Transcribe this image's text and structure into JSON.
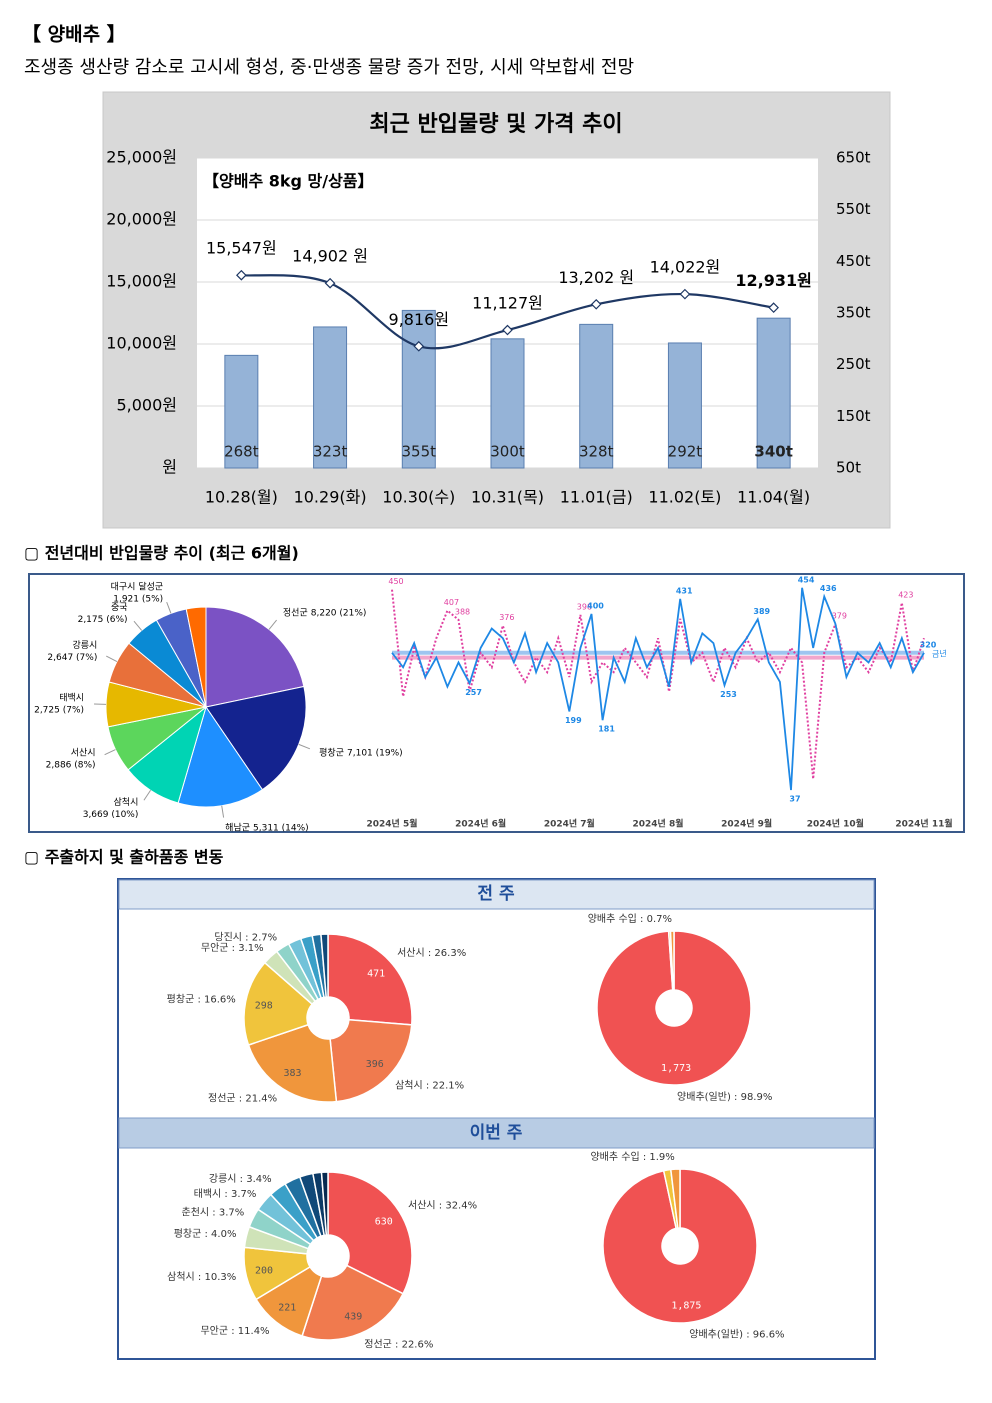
{
  "header": {
    "title": "【 양배추 】",
    "subtitle": "조생종 생산량 감소로 고시세 형성, 중·만생종 물량 증가 전망, 시세 약보합세 전망"
  },
  "sections": [
    "▢ 전년대비 반입물량 추이 (최근 6개월)",
    "▢ 주출하지 및 출하품종 변동"
  ],
  "panels": [
    "전 주",
    "이번 주"
  ],
  "chart_data": [
    {
      "type": "combo",
      "title": "최근 반입물량 및 가격 추이",
      "annotation": "【양배추 8kg 망/상품】",
      "categories": [
        "10.28(월)",
        "10.29(화)",
        "10.30(수)",
        "10.31(목)",
        "11.01(금)",
        "11.02(토)",
        "11.04(월)"
      ],
      "series": [
        {
          "type": "bar",
          "axis": "y2",
          "color": "#95b3d7",
          "values": [
            268,
            323,
            355,
            300,
            328,
            292,
            340
          ],
          "value_labels": [
            "268t",
            "323t",
            "355t",
            "300t",
            "328t",
            "292t",
            "340t"
          ]
        },
        {
          "type": "line",
          "color": "#1f3864",
          "values": [
            15547,
            14902,
            9816,
            11127,
            13202,
            14022,
            12931
          ],
          "value_labels": [
            "15,547원",
            "14,902 원",
            "9,816원",
            "11,127원",
            "13,202 원",
            "14,022원",
            "12,931원"
          ]
        }
      ],
      "ylim": [
        0,
        25000
      ],
      "yticks": [
        {
          "value": 0,
          "label": "원"
        },
        {
          "value": 5000,
          "label": "5,000원"
        },
        {
          "value": 10000,
          "label": "10,000원"
        },
        {
          "value": 15000,
          "label": "15,000원"
        },
        {
          "value": 20000,
          "label": "20,000원"
        },
        {
          "value": 25000,
          "label": "25,000원"
        }
      ],
      "y2lim": [
        50,
        650
      ],
      "y2ticks": [
        {
          "value": 50,
          "label": "50t"
        },
        {
          "value": 150,
          "label": "150t"
        },
        {
          "value": 250,
          "label": "250t"
        },
        {
          "value": 350,
          "label": "350t"
        },
        {
          "value": 450,
          "label": "450t"
        },
        {
          "value": 550,
          "label": "550t"
        },
        {
          "value": 650,
          "label": "650t"
        }
      ],
      "grid": true
    },
    {
      "type": "pie",
      "categories": [
        "정선군",
        "평창군",
        "해남군",
        "삼척시",
        "서산시",
        "태백시",
        "강릉시",
        "중국",
        "대구시 달성군",
        null
      ],
      "values": [
        8220,
        7101,
        5311,
        3669,
        2886,
        2725,
        2647,
        2175,
        1921,
        1200
      ],
      "value_labels": [
        "8,220 (21%)",
        "7,101 (19%)",
        "5,311 (14%)",
        "3,669 (10%)",
        "2,886 (8%)",
        "2,725 (7%)",
        "2,647 (7%)",
        "2,175 (6%)",
        "1,921 (5%)",
        null
      ],
      "colors": [
        "#7b52c4",
        "#14238f",
        "#1e8fff",
        "#00d4b4",
        "#5cd65c",
        "#e6b800",
        "#e8703a",
        "#0a8ad4",
        "#4a62c8",
        "#ff6a00"
      ]
    },
    {
      "type": "line",
      "categories": [
        "2024년 5월",
        null,
        null,
        null,
        null,
        null,
        null,
        null,
        "2024년 6월",
        null,
        null,
        null,
        null,
        null,
        null,
        null,
        "2024년 7월",
        null,
        null,
        null,
        null,
        null,
        null,
        null,
        "2024년 8월",
        null,
        null,
        null,
        null,
        null,
        null,
        null,
        "2024년 9월",
        null,
        null,
        null,
        null,
        null,
        null,
        null,
        "2024년 10월",
        null,
        null,
        null,
        null,
        null,
        null,
        null,
        "2024년 11월"
      ],
      "series": [
        {
          "name": "금년",
          "color": "#1e88e5",
          "values": [
            320,
            290,
            340,
            270,
            310,
            250,
            300,
            257,
            330,
            370,
            350,
            300,
            360,
            280,
            340,
            300,
            199,
            330,
            400,
            181,
            310,
            260,
            350,
            290,
            330,
            250,
            431,
            300,
            360,
            340,
            253,
            320,
            350,
            389,
            300,
            260,
            37,
            454,
            330,
            436,
            380,
            270,
            320,
            300,
            340,
            290,
            350,
            280,
            320
          ],
          "value_labels": [
            null,
            null,
            null,
            null,
            null,
            null,
            null,
            "257",
            null,
            null,
            null,
            null,
            null,
            null,
            null,
            null,
            "199",
            null,
            "400",
            "181",
            null,
            null,
            null,
            null,
            null,
            null,
            "431",
            null,
            null,
            null,
            "253",
            null,
            null,
            "389",
            null,
            null,
            "37",
            "454",
            null,
            "436",
            null,
            null,
            null,
            null,
            null,
            null,
            null,
            null,
            "320"
          ]
        },
        {
          "color": "#e040a0",
          "dotted": true,
          "values": [
            450,
            230,
            330,
            270,
            350,
            407,
            388,
            240,
            320,
            290,
            376,
            300,
            260,
            310,
            280,
            350,
            270,
            398,
            260,
            300,
            280,
            330,
            300,
            270,
            350,
            240,
            390,
            300,
            320,
            260,
            330,
            290,
            350,
            300,
            320,
            280,
            330,
            300,
            60,
            320,
            379,
            290,
            310,
            280,
            330,
            300,
            423,
            280,
            350
          ],
          "value_labels": [
            "450",
            null,
            null,
            null,
            null,
            "407",
            "388",
            null,
            null,
            null,
            "376",
            null,
            null,
            null,
            null,
            null,
            null,
            "398",
            null,
            null,
            null,
            null,
            null,
            null,
            null,
            null,
            null,
            null,
            null,
            null,
            null,
            null,
            null,
            null,
            null,
            null,
            null,
            null,
            null,
            null,
            "379",
            null,
            null,
            null,
            null,
            null,
            "423",
            null,
            null
          ]
        }
      ],
      "average_lines": [
        {
          "value": 320,
          "color": "#9ec5f0"
        },
        {
          "value": 310,
          "color": "#f2a6cc"
        }
      ],
      "ylim": [
        0,
        470
      ]
    },
    {
      "type": "donut",
      "values": [
        471,
        396,
        383,
        298,
        56,
        48,
        45,
        40,
        30,
        24
      ],
      "labels": [
        "서산시 : 26.3%",
        "삼척시 : 22.1%",
        "정선군 : 21.4%",
        "평창군 : 16.6%",
        "무안군 : 3.1%",
        "당진시 : 2.7%",
        null,
        null,
        null,
        null
      ],
      "value_labels": [
        "471",
        "396",
        "383",
        "298",
        null,
        null,
        null,
        null,
        null,
        null
      ],
      "colors": [
        "#f05252",
        "#f07a4e",
        "#f0963c",
        "#f0c43c",
        "#cfe3b8",
        "#8fd3c9",
        "#72c2d9",
        "#3aa0c8",
        "#2070a0",
        "#104878"
      ]
    },
    {
      "type": "donut",
      "values": [
        1773,
        7,
        13
      ],
      "labels": [
        "양배추(일반) : 98.9%",
        null,
        "양배추 수입 : 0.7%"
      ],
      "value_labels": [
        "1,773",
        null,
        null
      ],
      "colors": [
        "#f05252",
        "#f0c43c",
        "#f0963c"
      ]
    },
    {
      "type": "donut",
      "values": [
        630,
        439,
        221,
        200,
        78,
        72,
        72,
        66,
        60,
        50,
        32,
        24
      ],
      "labels": [
        "서산시 : 32.4%",
        "정선군 : 22.6%",
        "무안군 : 11.4%",
        "삼척시 : 10.3%",
        "평창군 : 4.0%",
        "춘천시 : 3.7%",
        "태백시 : 3.7%",
        "강릉시 : 3.4%",
        null,
        null,
        null,
        null
      ],
      "value_labels": [
        "630",
        "439",
        "221",
        "200",
        null,
        null,
        null,
        null,
        null,
        null,
        null,
        null
      ],
      "colors": [
        "#f05252",
        "#f07a4e",
        "#f0963c",
        "#f0c43c",
        "#cfe3b8",
        "#8fd3c9",
        "#72c2d9",
        "#3aa0c8",
        "#2070a0",
        "#104878",
        "#0c3a66",
        "#082a50"
      ]
    },
    {
      "type": "donut",
      "values": [
        1875,
        29,
        37
      ],
      "labels": [
        "양배추(일반) : 96.6%",
        null,
        "양배추 수입 : 1.9%"
      ],
      "value_labels": [
        "1,875",
        null,
        null
      ],
      "colors": [
        "#f05252",
        "#f0c43c",
        "#f0963c"
      ]
    }
  ]
}
